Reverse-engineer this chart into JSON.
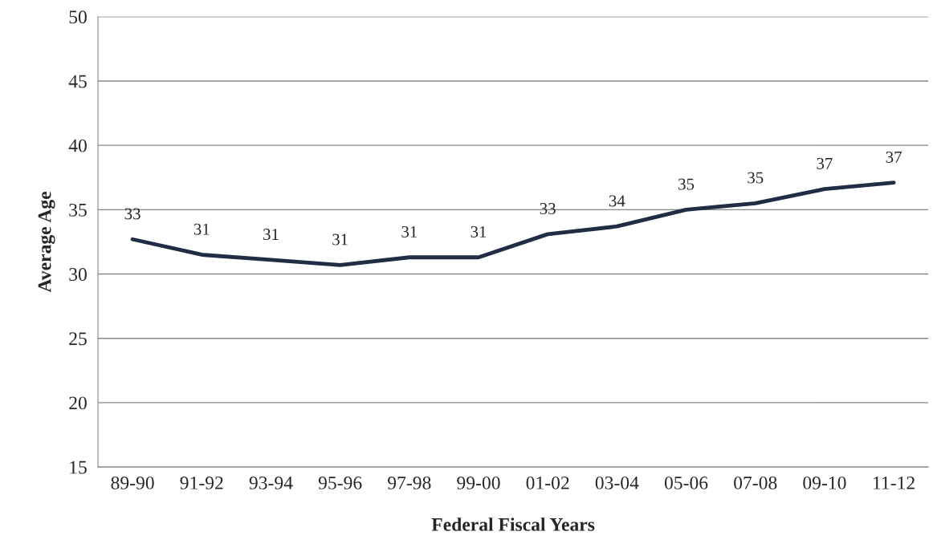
{
  "chart_data": {
    "type": "line",
    "xlabel": "Federal Fiscal Years",
    "ylabel": "Average Age",
    "categories": [
      "89-90",
      "91-92",
      "93-94",
      "95-96",
      "97-98",
      "99-00",
      "01-02",
      "03-04",
      "05-06",
      "07-08",
      "09-10",
      "11-12"
    ],
    "series": [
      {
        "color": "#1f2d45",
        "values": [
          32.7,
          31.5,
          31.1,
          30.7,
          31.3,
          31.3,
          33.1,
          33.7,
          35.0,
          35.5,
          36.6,
          37.1
        ],
        "value_labels": [
          "33",
          "31",
          "31",
          "31",
          "31",
          "31",
          "33",
          "34",
          "35",
          "35",
          "37",
          "37"
        ]
      }
    ],
    "ylim": [
      15,
      50
    ],
    "yticks": [
      15,
      20,
      25,
      30,
      35,
      40,
      45,
      50
    ],
    "grid": "y",
    "legend": false,
    "marker": "none",
    "line_style": "solid"
  }
}
